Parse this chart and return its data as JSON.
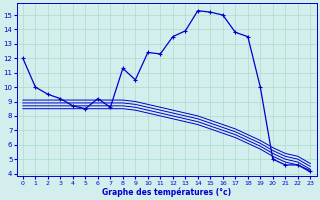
{
  "xlabel": "Graphe des températures (°c)",
  "bg_color": "#d4eeee",
  "line_color": "#0000cc",
  "grid_color": "#aaddcc",
  "ylim": [
    3.8,
    15.8
  ],
  "xlim": [
    -0.5,
    23.5
  ],
  "yticks": [
    4,
    5,
    6,
    7,
    8,
    9,
    10,
    11,
    12,
    13,
    14,
    15
  ],
  "xticks": [
    0,
    1,
    2,
    3,
    4,
    5,
    6,
    7,
    8,
    9,
    10,
    11,
    12,
    13,
    14,
    15,
    16,
    17,
    18,
    19,
    20,
    21,
    22,
    23
  ],
  "main_line": {
    "x": [
      0,
      1,
      2,
      3,
      4,
      5,
      6,
      7,
      8,
      9,
      10,
      11,
      12,
      13,
      14,
      15,
      16,
      17,
      18,
      19,
      20,
      21,
      22,
      23
    ],
    "y": [
      12.0,
      10.0,
      9.5,
      9.2,
      8.7,
      8.5,
      9.2,
      8.6,
      11.3,
      10.5,
      12.4,
      12.3,
      13.5,
      13.9,
      15.3,
      15.2,
      15.0,
      13.8,
      13.5,
      10.0,
      5.0,
      4.6,
      4.6,
      4.2
    ]
  },
  "band_lines": [
    {
      "x": [
        0,
        5,
        6,
        7,
        8,
        9,
        10,
        11,
        12,
        13,
        14,
        15,
        16,
        17,
        18,
        19,
        20,
        21,
        22,
        23
      ],
      "y": [
        8.5,
        8.5,
        8.5,
        8.5,
        8.5,
        8.4,
        8.2,
        8.0,
        7.8,
        7.6,
        7.4,
        7.1,
        6.8,
        6.5,
        6.1,
        5.7,
        5.2,
        4.8,
        4.6,
        4.1
      ]
    },
    {
      "x": [
        0,
        5,
        6,
        7,
        8,
        9,
        10,
        11,
        12,
        13,
        14,
        15,
        16,
        17,
        18,
        19,
        20,
        21,
        22,
        23
      ],
      "y": [
        8.7,
        8.7,
        8.7,
        8.7,
        8.7,
        8.6,
        8.4,
        8.2,
        8.0,
        7.8,
        7.6,
        7.3,
        7.0,
        6.7,
        6.3,
        5.9,
        5.4,
        5.0,
        4.8,
        4.3
      ]
    },
    {
      "x": [
        0,
        5,
        6,
        7,
        8,
        9,
        10,
        11,
        12,
        13,
        14,
        15,
        16,
        17,
        18,
        19,
        20,
        21,
        22,
        23
      ],
      "y": [
        8.9,
        8.9,
        8.9,
        8.9,
        8.9,
        8.8,
        8.6,
        8.4,
        8.2,
        8.0,
        7.8,
        7.5,
        7.2,
        6.9,
        6.5,
        6.1,
        5.6,
        5.2,
        5.0,
        4.5
      ]
    },
    {
      "x": [
        0,
        5,
        6,
        7,
        8,
        9,
        10,
        11,
        12,
        13,
        14,
        15,
        16,
        17,
        18,
        19,
        20,
        21,
        22,
        23
      ],
      "y": [
        9.1,
        9.1,
        9.1,
        9.1,
        9.1,
        9.0,
        8.8,
        8.6,
        8.4,
        8.2,
        8.0,
        7.7,
        7.4,
        7.1,
        6.7,
        6.3,
        5.8,
        5.4,
        5.2,
        4.7
      ]
    }
  ]
}
